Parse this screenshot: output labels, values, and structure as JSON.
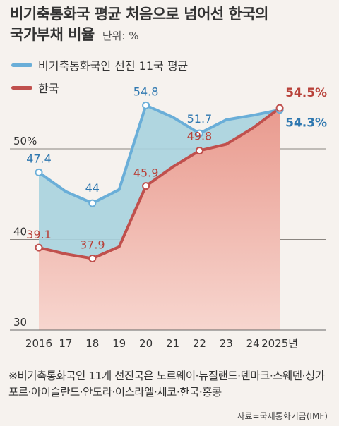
{
  "header": {
    "title_line1": "비기축통화국 평균 처음으로 넘어선 한국의",
    "title_line2": "국가부채 비율",
    "unit": "단위: %"
  },
  "chart_data": {
    "type": "line",
    "x": [
      "2016",
      "17",
      "18",
      "19",
      "20",
      "21",
      "22",
      "23",
      "24",
      "2025년"
    ],
    "ylim": [
      30,
      58
    ],
    "yticks": [
      30,
      40,
      50
    ],
    "ytick_labels": [
      "30",
      "40",
      "50%"
    ],
    "series": [
      {
        "name": "비기축통화국인 선진 11국 평균",
        "values": [
          47.4,
          45.3,
          44.0,
          45.5,
          54.8,
          53.5,
          51.7,
          53.2,
          53.7,
          54.3
        ],
        "labels": [
          "47.4",
          "",
          "44",
          "",
          "54.8",
          "",
          "51.7",
          "",
          "",
          "54.3%"
        ]
      },
      {
        "name": "한국",
        "values": [
          39.1,
          38.4,
          37.9,
          39.2,
          45.9,
          48.0,
          49.8,
          50.5,
          52.3,
          54.5
        ],
        "labels": [
          "39.1",
          "",
          "37.9",
          "",
          "45.9",
          "",
          "49.8",
          "",
          "",
          "54.5%"
        ]
      }
    ]
  },
  "colors": {
    "avg_line": "#6aaed8",
    "avg_fill": "#a9d3de",
    "korea_line": "#c0504d",
    "korea_fill": "#e99a8e",
    "avg_label": "#2f78b0",
    "korea_label": "#b8423a"
  },
  "note": "※비기축통화국인 11개 선진국은 노르웨이·뉴질랜드·덴마크·스웨덴·싱가포르·아이슬란드·안도라·이스라엘·체코·한국·홍콩",
  "source": "자료=국제통화기금(IMF)"
}
